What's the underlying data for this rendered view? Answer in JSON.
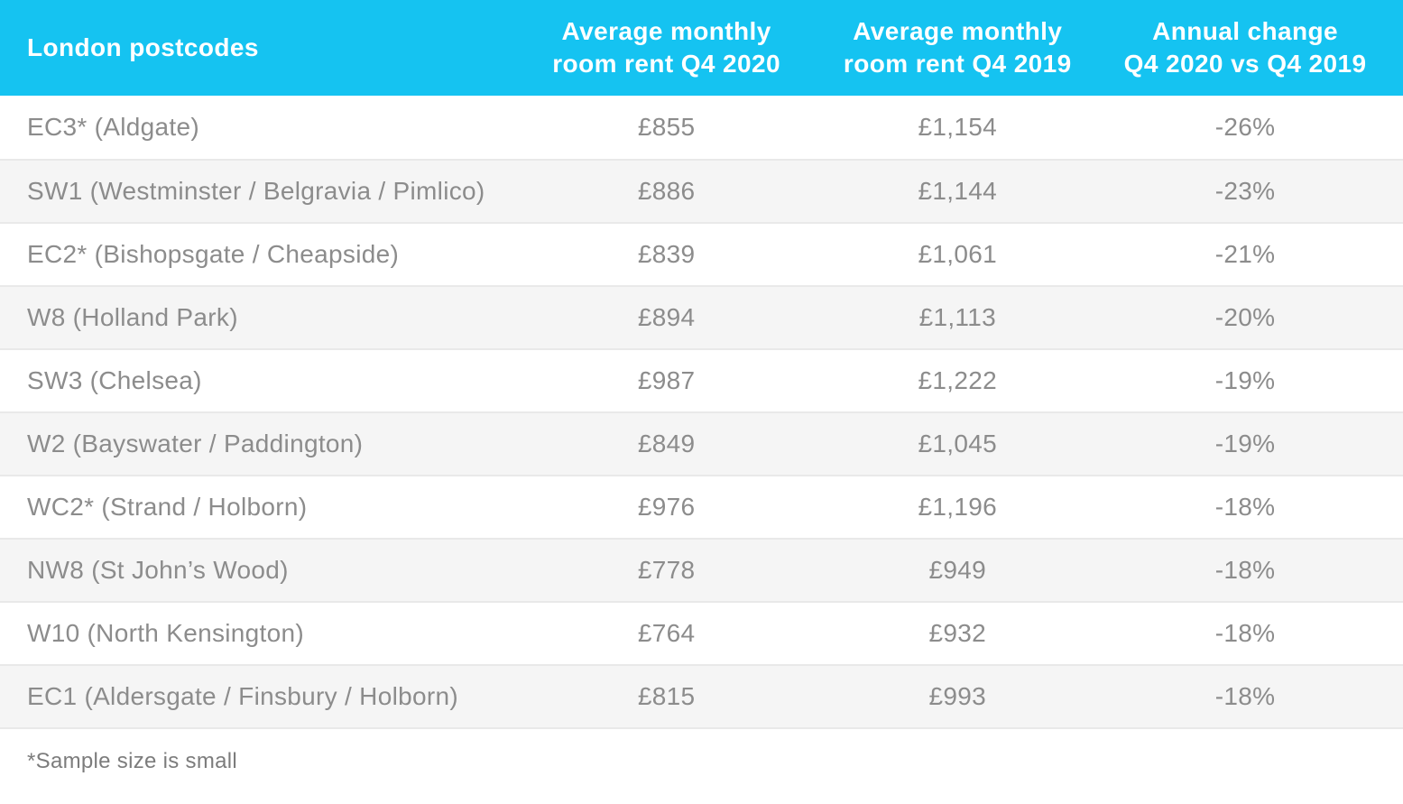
{
  "theme": {
    "header_bg": "#15c3f1",
    "header_text": "#ffffff",
    "row_bg": "#ffffff",
    "row_alt_bg": "#f5f5f5",
    "row_border": "#e9e9e9",
    "row_text": "#8c8c8c",
    "footnote_text": "#7c7c7c"
  },
  "table": {
    "columns": [
      {
        "label": "London postcodes"
      },
      {
        "label": "Average monthly\nroom rent Q4 2020"
      },
      {
        "label": "Average monthly\nroom rent Q4 2019"
      },
      {
        "label": "Annual change\nQ4 2020 vs Q4 2019"
      }
    ],
    "footnote": "*Sample size is small"
  },
  "chart_data": {
    "type": "table",
    "title": "",
    "columns": [
      "London postcodes",
      "Average monthly room rent Q4 2020",
      "Average monthly room rent Q4 2019",
      "Annual change Q4 2020 vs Q4 2019"
    ],
    "rows": [
      [
        "EC3* (Aldgate)",
        "£855",
        "£1,154",
        "-26%"
      ],
      [
        "SW1 (Westminster / Belgravia / Pimlico)",
        "£886",
        "£1,144",
        "-23%"
      ],
      [
        "EC2* (Bishopsgate / Cheapside)",
        "£839",
        "£1,061",
        "-21%"
      ],
      [
        "W8 (Holland Park)",
        "£894",
        "£1,113",
        "-20%"
      ],
      [
        "SW3 (Chelsea)",
        "£987",
        "£1,222",
        "-19%"
      ],
      [
        "W2 (Bayswater / Paddington)",
        "£849",
        "£1,045",
        "-19%"
      ],
      [
        "WC2* (Strand / Holborn)",
        "£976",
        "£1,196",
        "-18%"
      ],
      [
        "NW8 (St John’s Wood)",
        "£778",
        "£949",
        "-18%"
      ],
      [
        "W10 (North Kensington)",
        "£764",
        "£932",
        "-18%"
      ],
      [
        "EC1 (Aldersgate / Finsbury / Holborn)",
        "£815",
        "£993",
        "-18%"
      ]
    ],
    "rent_q4_2020_values": [
      855,
      886,
      839,
      894,
      987,
      849,
      976,
      778,
      764,
      815
    ],
    "rent_q4_2019_values": [
      1154,
      1144,
      1061,
      1113,
      1222,
      1045,
      1196,
      949,
      932,
      993
    ],
    "annual_change_pct": [
      -26,
      -23,
      -21,
      -20,
      -19,
      -19,
      -18,
      -18,
      -18,
      -18
    ],
    "footnote": "*Sample size is small"
  }
}
